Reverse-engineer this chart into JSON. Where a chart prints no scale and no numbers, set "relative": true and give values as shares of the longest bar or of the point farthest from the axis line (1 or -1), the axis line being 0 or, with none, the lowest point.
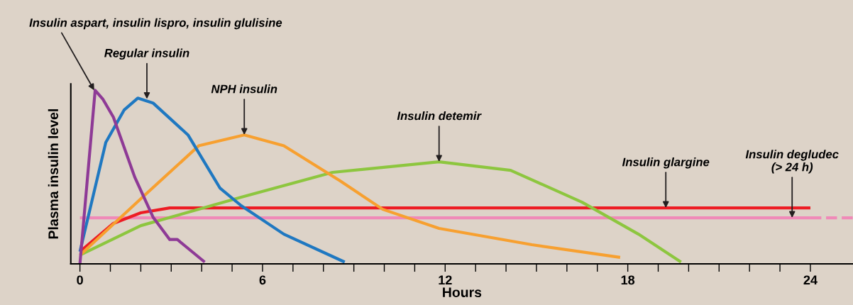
{
  "chart_data": {
    "type": "line",
    "relative": true,
    "xlabel": "Hours",
    "ylabel": "Plasma insulin level",
    "xlim": [
      -0.3,
      25.4
    ],
    "xticks": [
      0,
      {
        "value": 1,
        "label": null
      },
      {
        "value": 2,
        "label": null
      },
      {
        "value": 3,
        "label": null
      },
      {
        "value": 4,
        "label": null
      },
      {
        "value": 5,
        "label": null
      },
      6,
      {
        "value": 7,
        "label": null
      },
      {
        "value": 8,
        "label": null
      },
      {
        "value": 9,
        "label": null
      },
      {
        "value": 10,
        "label": null
      },
      {
        "value": 11,
        "label": null
      },
      12,
      {
        "value": 13,
        "label": null
      },
      {
        "value": 14,
        "label": null
      },
      {
        "value": 15,
        "label": null
      },
      {
        "value": 16,
        "label": null
      },
      {
        "value": 17,
        "label": null
      },
      18,
      {
        "value": 19,
        "label": null
      },
      {
        "value": 20,
        "label": null
      },
      {
        "value": 21,
        "label": null
      },
      {
        "value": 22,
        "label": null
      },
      {
        "value": 23,
        "label": null
      },
      24
    ],
    "tick_labels": "x",
    "grid": false,
    "marker": "none",
    "series": [
      {
        "color": "#f08ab8",
        "x": [
          0,
          24
        ],
        "values": [
          0.265,
          0.265
        ],
        "line_style": "solid"
      },
      {
        "color": "#f08ab8",
        "x": [
          24,
          25.4
        ],
        "values": [
          0.265,
          0.265
        ],
        "line_style": "dashed"
      },
      {
        "color": "#ed1c24",
        "x": [
          0,
          1.1,
          2.0,
          2.95,
          24
        ],
        "values": [
          0.07,
          0.233,
          0.294,
          0.322,
          0.322
        ],
        "line_style": "solid"
      },
      {
        "color": "#8dc63f",
        "x": [
          0,
          2.0,
          5.3,
          8.3,
          11.8,
          14.15,
          16.5,
          18.35,
          19.75
        ],
        "values": [
          0.05,
          0.22,
          0.384,
          0.527,
          0.588,
          0.539,
          0.355,
          0.171,
          0.01
        ],
        "line_style": "solid"
      },
      {
        "color": "#f7a030",
        "x": [
          0,
          2.0,
          3.9,
          5.4,
          6.7,
          8.55,
          9.95,
          11.8,
          14.85,
          17.75
        ],
        "values": [
          0.05,
          0.375,
          0.68,
          0.743,
          0.68,
          0.478,
          0.314,
          0.204,
          0.11,
          0.037
        ],
        "line_style": "solid"
      },
      {
        "color": "#1f78c1",
        "x": [
          0,
          0.85,
          1.45,
          1.9,
          2.4,
          3.55,
          4.6,
          5.3,
          6.7,
          8.7
        ],
        "values": [
          0.07,
          0.7,
          0.886,
          0.955,
          0.927,
          0.743,
          0.437,
          0.335,
          0.171,
          0.01
        ],
        "line_style": "solid"
      },
      {
        "color": "#8e3a96",
        "x": [
          0,
          0.5,
          0.75,
          1.1,
          1.8,
          2.4,
          2.95,
          3.2,
          4.1
        ],
        "values": [
          0,
          1.0,
          0.95,
          0.845,
          0.5,
          0.27,
          0.14,
          0.14,
          0.01
        ],
        "line_style": "solid"
      }
    ],
    "annotations": [
      {
        "text": "Insulin aspart, insulin lispro, insulin glulisine",
        "x": 0.47,
        "y": 1.0
      },
      {
        "text": "Regular insulin",
        "x": 2.2,
        "y": 0.95
      },
      {
        "text": "NPH insulin",
        "x": 5.4,
        "y": 0.743
      },
      {
        "text": "Insulin detemir",
        "x": 11.8,
        "y": 0.588
      },
      {
        "text": "Insulin glargine",
        "x": 19.25,
        "y": 0.322
      },
      {
        "text": "Insulin degludec\n(> 24 h)",
        "x": 23.4,
        "y": 0.265
      }
    ]
  }
}
